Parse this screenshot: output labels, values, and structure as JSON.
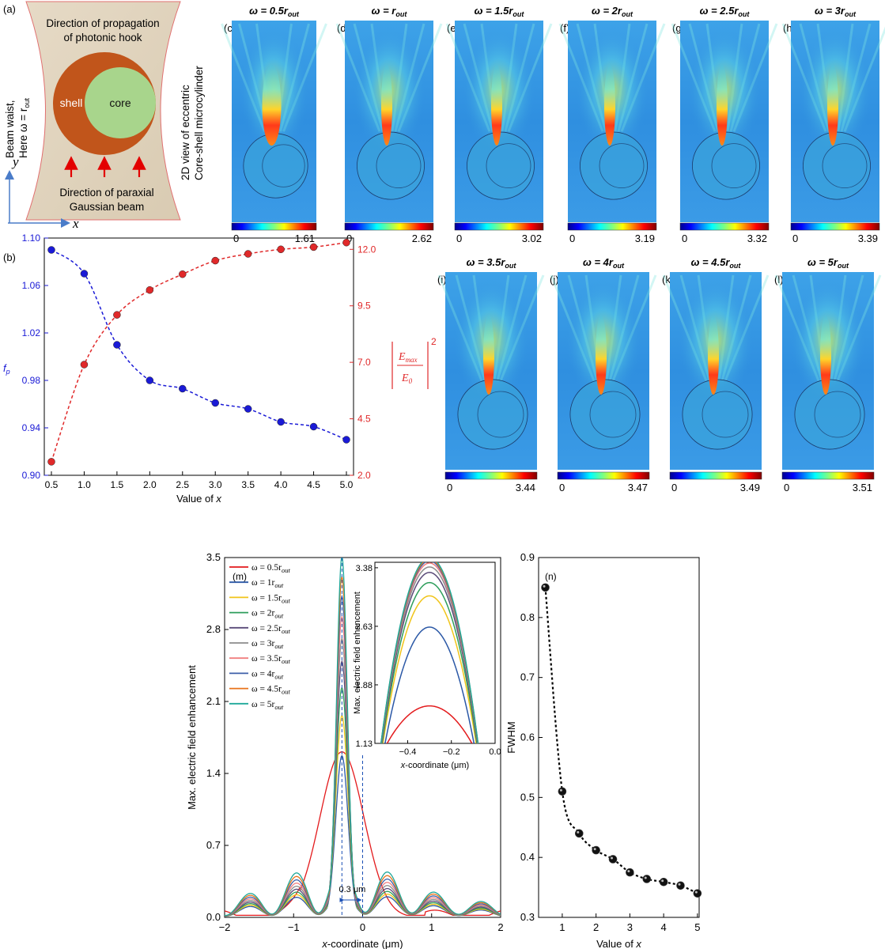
{
  "panel_a": {
    "label": "(a)",
    "top_text": [
      "Direction of propagation",
      "of photonic hook"
    ],
    "shell_label": "shell",
    "core_label": "core",
    "bottom_text": [
      "Direction of paraxial",
      "Gaussian beam"
    ],
    "left_text": [
      "Beam waist,",
      "Here ω = r"
    ],
    "left_text_sub": "out",
    "right_text": [
      "2D view of eccentric",
      "Core-shell microcylinder"
    ],
    "axis_y": "y",
    "axis_x": "x",
    "colors": {
      "shell": "#c1551b",
      "core": "#a8d58c",
      "bg": "#e3d6c0",
      "arrow": "#e30000"
    }
  },
  "field_maps": [
    {
      "label": "(c)",
      "title_pre": "ω = 0.5r",
      "sub": "out",
      "cmin": "0",
      "cmax": "1.61"
    },
    {
      "label": "(d)",
      "title_pre": "ω = r",
      "sub": "out",
      "cmin": "0",
      "cmax": "2.62"
    },
    {
      "label": "(e)",
      "title_pre": "ω = 1.5r",
      "sub": "out",
      "cmin": "0",
      "cmax": "3.02"
    },
    {
      "label": "(f)",
      "title_pre": "ω = 2r",
      "sub": "out",
      "cmin": "0",
      "cmax": "3.19"
    },
    {
      "label": "(g)",
      "title_pre": "ω = 2.5r",
      "sub": "out",
      "cmin": "0",
      "cmax": "3.32"
    },
    {
      "label": "(h)",
      "title_pre": "ω = 3r",
      "sub": "out",
      "cmin": "0",
      "cmax": "3.39"
    },
    {
      "label": "(i)",
      "title_pre": "ω = 3.5r",
      "sub": "out",
      "cmin": "0",
      "cmax": "3.44"
    },
    {
      "label": "(j)",
      "title_pre": "ω = 4r",
      "sub": "out",
      "cmin": "0",
      "cmax": "3.47"
    },
    {
      "label": "(k)",
      "title_pre": "ω = 4.5r",
      "sub": "out",
      "cmin": "0",
      "cmax": "3.49"
    },
    {
      "label": "(l)",
      "title_pre": "ω = 5r",
      "sub": "out",
      "cmin": "0",
      "cmax": "3.51"
    }
  ],
  "chart_data": [
    {
      "id": "b",
      "type": "scatter",
      "panel_label": "(b)",
      "xlabel": "Value of x",
      "ylabel_left": "f",
      "ylabel_left_sub": "p",
      "ylabel_right": "|E_max/E_0|^2",
      "ylabel_right_num": "E",
      "ylabel_right_num_sub": "max",
      "ylabel_right_den": "E",
      "ylabel_right_den_sub": "0",
      "ylabel_right_exp": "2",
      "xlim": [
        0.5,
        5.0
      ],
      "x_ticks": [
        "0.5",
        "1.0",
        "1.5",
        "2.0",
        "2.5",
        "3.0",
        "3.5",
        "4.0",
        "4.5",
        "5.0"
      ],
      "ylim_left": [
        0.9,
        1.1
      ],
      "y_left_ticks": [
        "0.90",
        "0.94",
        "0.98",
        "1.02",
        "1.06",
        "1.10"
      ],
      "ylim_right": [
        2.0,
        12.5
      ],
      "y_right_ticks": [
        "2.0",
        "4.5",
        "7.0",
        "9.5",
        "12.0"
      ],
      "x": [
        0.5,
        1.0,
        1.5,
        2.0,
        2.5,
        3.0,
        3.5,
        4.0,
        4.5,
        5.0
      ],
      "series": [
        {
          "name": "f_p",
          "axis": "left",
          "color": "#1a1ad6",
          "values": [
            1.09,
            1.07,
            1.01,
            0.98,
            0.973,
            0.961,
            0.956,
            0.945,
            0.941,
            0.93
          ]
        },
        {
          "name": "|Emax/E0|^2",
          "axis": "right",
          "color": "#e0292a",
          "values": [
            2.6,
            6.9,
            9.1,
            10.2,
            10.9,
            11.5,
            11.8,
            12.0,
            12.1,
            12.3
          ]
        }
      ]
    },
    {
      "id": "m",
      "type": "line",
      "panel_label": "(m)",
      "xlabel": "x-coordinate (μm)",
      "ylabel": "Max. electric field enhancement",
      "xlim": [
        -2,
        2
      ],
      "x_ticks": [
        "−2",
        "−1",
        "0",
        "1",
        "2"
      ],
      "ylim": [
        0,
        3.5
      ],
      "y_ticks": [
        "0.0",
        "0.7",
        "1.4",
        "2.1",
        "2.8",
        "3.5"
      ],
      "annotation": "0.3 μm",
      "peak_x": -0.3,
      "series": [
        {
          "name": "ω = 0.5r",
          "sub": "out",
          "color": "#e31a1c",
          "peak": 1.61
        },
        {
          "name": "ω = 1r",
          "sub": "out",
          "color": "#2b58a6",
          "peak": 2.62
        },
        {
          "name": "ω = 1.5r",
          "sub": "out",
          "color": "#f0c419",
          "peak": 3.02
        },
        {
          "name": "ω = 2r",
          "sub": "out",
          "color": "#2e9e5b",
          "peak": 3.19
        },
        {
          "name": "ω = 2.5r",
          "sub": "out",
          "color": "#5a4a78",
          "peak": 3.32
        },
        {
          "name": "ω = 3r",
          "sub": "out",
          "color": "#8c8c8c",
          "peak": 3.39
        },
        {
          "name": "ω = 3.5r",
          "sub": "out",
          "color": "#f07f7f",
          "peak": 3.44
        },
        {
          "name": "ω = 4r",
          "sub": "out",
          "color": "#3d5fa8",
          "peak": 3.47
        },
        {
          "name": "ω = 4.5r",
          "sub": "out",
          "color": "#e8731a",
          "peak": 3.49
        },
        {
          "name": "ω = 5r",
          "sub": "out",
          "color": "#1fa89a",
          "peak": 3.51
        }
      ],
      "inset": {
        "xlabel": "x-coordinate (μm)",
        "ylabel": "Max. electric field enhancement",
        "xlim": [
          -0.55,
          0.0
        ],
        "x_ticks": [
          "−0.4",
          "−0.2",
          "0.0"
        ],
        "ylim": [
          1.13,
          3.45
        ],
        "y_ticks": [
          "1.13",
          "1.88",
          "2.63",
          "3.38"
        ]
      }
    },
    {
      "id": "n",
      "type": "scatter",
      "panel_label": "(n)",
      "xlabel": "Value of x",
      "ylabel": "FWHM",
      "xlim": [
        0.3,
        5.05
      ],
      "x_ticks": [
        "1",
        "2",
        "3",
        "4",
        "5"
      ],
      "ylim": [
        0.3,
        0.9
      ],
      "y_ticks": [
        "0.3",
        "0.4",
        "0.5",
        "0.6",
        "0.7",
        "0.8",
        "0.9"
      ],
      "x": [
        0.5,
        1.0,
        1.5,
        2.0,
        2.5,
        3.0,
        3.5,
        4.0,
        4.5,
        5.0
      ],
      "values": [
        0.85,
        0.51,
        0.44,
        0.412,
        0.397,
        0.375,
        0.364,
        0.359,
        0.353,
        0.34
      ]
    }
  ]
}
